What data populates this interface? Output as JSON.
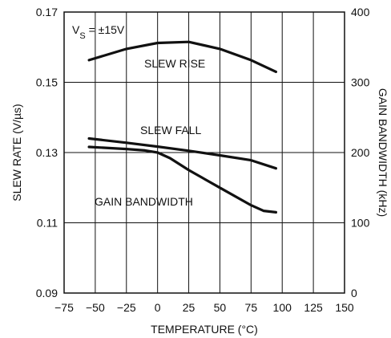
{
  "chart_data": {
    "type": "line",
    "xlabel": "TEMPERATURE (°C)",
    "ylabel_left": "SLEW RATE (V/µs)",
    "ylabel_right": "GAIN BANDWIDTH (kHz)",
    "xlim": [
      -75,
      150
    ],
    "ylim_left": [
      0.09,
      0.17
    ],
    "ylim_right": [
      0,
      400
    ],
    "x_ticks": [
      "−75",
      "−50",
      "−25",
      "0",
      "25",
      "50",
      "75",
      "100",
      "125",
      "150"
    ],
    "y_ticks_left": [
      "0.09",
      "0.11",
      "0.13",
      "0.15",
      "0.17"
    ],
    "y_ticks_right": [
      "0",
      "100",
      "200",
      "300",
      "400"
    ],
    "grid": true,
    "annotations": {
      "condition": "VS = ±15V",
      "condition_main": "V",
      "condition_sub": "S",
      "condition_rest": " = ±15V",
      "slew_rise": "SLEW RISE",
      "slew_fall": "SLEW FALL",
      "gain_bandwidth": "GAIN BANDWIDTH"
    },
    "series": [
      {
        "name": "SLEW RISE",
        "axis": "left",
        "x": [
          -55,
          -25,
          0,
          25,
          50,
          75,
          95
        ],
        "y": [
          0.1563,
          0.1595,
          0.1612,
          0.1615,
          0.1595,
          0.1563,
          0.153
        ]
      },
      {
        "name": "SLEW FALL",
        "axis": "left",
        "x": [
          -55,
          -25,
          0,
          25,
          50,
          75,
          95
        ],
        "y": [
          0.134,
          0.1328,
          0.1317,
          0.1305,
          0.1292,
          0.1278,
          0.1255
        ]
      },
      {
        "name": "GAIN BANDWIDTH",
        "axis": "right",
        "x": [
          -55,
          -25,
          -10,
          0,
          10,
          25,
          50,
          75,
          85,
          95
        ],
        "y": [
          208,
          205,
          203,
          200,
          192,
          175,
          150,
          125,
          117,
          115
        ]
      }
    ]
  }
}
